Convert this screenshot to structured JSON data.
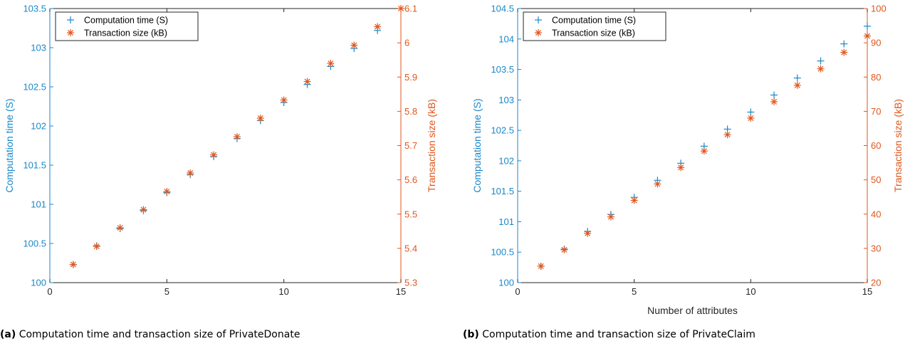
{
  "colors": {
    "left_axis": "#1a87c9",
    "right_axis": "#e0561c",
    "computation_marker": "#1a87c9",
    "transaction_marker": "#e0561c",
    "axis_black": "#262626"
  },
  "captions": [
    {
      "label": "(a)",
      "text": "Computation time and transaction size of PrivateDonate"
    },
    {
      "label": "(b)",
      "text": "Computation time and transaction size of PrivateClaim"
    }
  ],
  "chart_data": [
    {
      "type": "scatter",
      "title": "",
      "xlabel": "",
      "ylabel_left": "Computation time (S)",
      "ylabel_right": "Transaction size (kB)",
      "xlim": [
        0,
        15
      ],
      "xticks": [
        0,
        5,
        10,
        15
      ],
      "ylim_left": [
        100,
        103.5
      ],
      "yticks_left": [
        100,
        100.5,
        101,
        101.5,
        102,
        102.5,
        103,
        103.5
      ],
      "ylim_right": [
        5.3,
        6.1
      ],
      "yticks_right": [
        5.3,
        5.4,
        5.5,
        5.6,
        5.7,
        5.8,
        5.9,
        6,
        6.1
      ],
      "legend_position": "top-left",
      "series": [
        {
          "name": "Computation time (S)",
          "axis": "left",
          "marker": "+",
          "x": [
            1,
            2,
            3,
            4,
            5,
            6,
            7,
            8,
            9,
            10,
            11,
            12,
            13,
            14
          ],
          "y": [
            100.23,
            100.47,
            100.69,
            100.92,
            101.15,
            101.38,
            101.61,
            101.84,
            102.07,
            102.3,
            102.53,
            102.76,
            102.99,
            103.22
          ]
        },
        {
          "name": "Transaction size (kB)",
          "axis": "right",
          "marker": "*",
          "x": [
            1,
            2,
            3,
            4,
            5,
            6,
            7,
            8,
            9,
            10,
            11,
            12,
            13,
            14,
            15
          ],
          "y": [
            5.353,
            5.406,
            5.46,
            5.513,
            5.566,
            5.62,
            5.673,
            5.726,
            5.78,
            5.833,
            5.887,
            5.94,
            5.993,
            6.047,
            6.1
          ]
        }
      ]
    },
    {
      "type": "scatter",
      "title": "",
      "xlabel": "Number of attributes",
      "ylabel_left": "Computation time (S)",
      "ylabel_right": "Transaction size (kB)",
      "xlim": [
        0,
        15
      ],
      "xticks": [
        0,
        5,
        10,
        15
      ],
      "ylim_left": [
        100,
        104.5
      ],
      "yticks_left": [
        100,
        100.5,
        101,
        101.5,
        102,
        102.5,
        103,
        103.5,
        104,
        104.5
      ],
      "ylim_right": [
        20,
        100
      ],
      "yticks_right": [
        20,
        30,
        40,
        50,
        60,
        70,
        80,
        90,
        100
      ],
      "legend_position": "top-left",
      "series": [
        {
          "name": "Computation time (S)",
          "axis": "left",
          "marker": "+",
          "x": [
            1,
            2,
            3,
            4,
            5,
            6,
            7,
            8,
            9,
            10,
            11,
            12,
            13,
            14,
            15
          ],
          "y": [
            100.27,
            100.55,
            100.84,
            101.12,
            101.4,
            101.68,
            101.96,
            102.24,
            102.52,
            102.8,
            103.08,
            103.36,
            103.64,
            103.92,
            104.21
          ]
        },
        {
          "name": "Transaction size (kB)",
          "axis": "right",
          "marker": "*",
          "x": [
            1,
            2,
            3,
            4,
            5,
            6,
            7,
            8,
            9,
            10,
            11,
            12,
            13,
            14,
            15
          ],
          "y": [
            24.8,
            29.6,
            34.4,
            39.2,
            44.0,
            48.8,
            53.6,
            58.4,
            63.2,
            68.0,
            72.8,
            77.6,
            82.4,
            87.2,
            92.0
          ]
        }
      ]
    }
  ]
}
